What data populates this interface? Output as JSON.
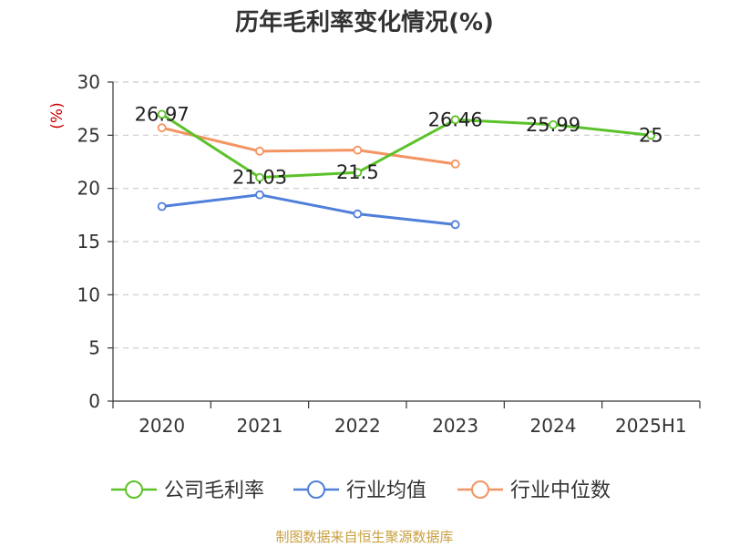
{
  "title": "历年毛利率变化情况(%)",
  "source": "制图数据来自恒生聚源数据库",
  "chart_data": {
    "type": "line",
    "title": "历年毛利率变化情况(%)",
    "ylabel": "(%)",
    "ylabel_color": "#cc0000",
    "categories": [
      "2020",
      "2021",
      "2022",
      "2023",
      "2024",
      "2025H1"
    ],
    "ylim": [
      0,
      30
    ],
    "yticks": [
      0,
      5,
      10,
      15,
      20,
      25,
      30
    ],
    "grid": true,
    "legend_position": "bottom",
    "series": [
      {
        "name": "公司毛利率",
        "color": "#5cc22a",
        "values": [
          26.97,
          21.03,
          21.5,
          26.46,
          25.99,
          25
        ],
        "labels": [
          "26.97",
          "21.03",
          "21.5",
          "26.46",
          "25.99",
          "25"
        ]
      },
      {
        "name": "行业均值",
        "color": "#4f7fd9",
        "values": [
          18.3,
          19.4,
          17.6,
          16.6,
          null,
          null
        ]
      },
      {
        "name": "行业中位数",
        "color": "#f39462",
        "values": [
          25.7,
          23.5,
          23.6,
          22.3,
          null,
          null
        ]
      }
    ]
  }
}
